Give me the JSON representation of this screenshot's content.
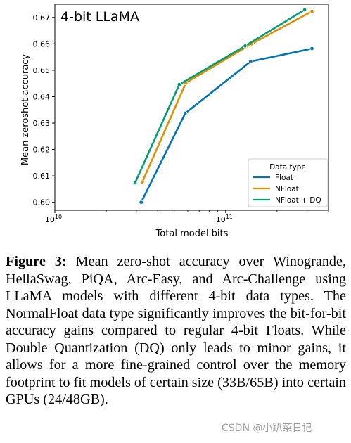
{
  "chart_data": {
    "type": "line",
    "title": "4-bit LLaMA",
    "xlabel": "Total model bits",
    "ylabel": "Mean zeroshot accuracy",
    "x_scale": "log",
    "xlim": [
      10000000000.0,
      400000000000.0
    ],
    "ylim": [
      0.597,
      0.675
    ],
    "x_ticks": [
      {
        "value": 10000000000.0,
        "base": "10",
        "exp": "10"
      },
      {
        "value": 100000000000.0,
        "base": "10",
        "exp": "11"
      }
    ],
    "y_ticks": [
      0.6,
      0.61,
      0.62,
      0.63,
      0.64,
      0.65,
      0.66,
      0.67
    ],
    "grid": false,
    "legend": {
      "title": "Data type",
      "placement": "lower-right"
    },
    "series": [
      {
        "name": "Float",
        "color": "#0173b2",
        "x": [
          32000000000.0,
          58000000000.0,
          140000000000.0,
          320000000000.0
        ],
        "y": [
          0.6,
          0.6337,
          0.6533,
          0.6582
        ]
      },
      {
        "name": "NFloat",
        "color": "#de8f05",
        "x": [
          32500000000.0,
          58500000000.0,
          142000000000.0,
          320000000000.0
        ],
        "y": [
          0.6077,
          0.6452,
          0.66,
          0.6723
        ]
      },
      {
        "name": "NFloat + DQ",
        "color": "#029e73",
        "x": [
          29500000000.0,
          53500000000.0,
          130000000000.0,
          290000000000.0
        ],
        "y": [
          0.6074,
          0.6446,
          0.6592,
          0.6729
        ]
      }
    ]
  },
  "caption": {
    "label": "Figure 3:",
    "text": "Mean zero-shot accuracy over Winogrande, HellaSwag, PiQA, Arc-Easy, and Arc-Challenge using LLaMA models with different 4-bit data types. The NormalFloat data type significantly improves the bit-for-bit accuracy gains compared to regular 4-bit Floats. While Double Quantization (DQ) only leads to minor gains, it allows for a more fine-grained control over the memory footprint to fit models of certain size (33B/65B) into certain GPUs (24/48GB)."
  },
  "watermark": "CSDN @小趴菜日记"
}
